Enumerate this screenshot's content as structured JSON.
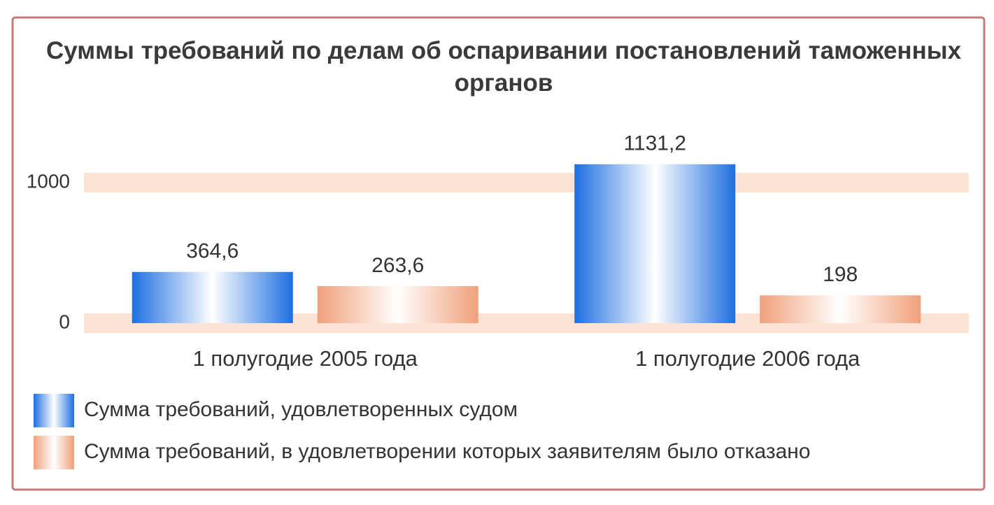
{
  "chart_data": {
    "type": "bar",
    "title": "Суммы требований по делам об оспаривании постановлений таможенных органов",
    "categories": [
      "1 полугодие 2005 года",
      "1 полугодие 2006 года"
    ],
    "series": [
      {
        "name": "Сумма требований, удовлетворенных судом",
        "color": "#1e6fe0",
        "values": [
          364.6,
          1131.2
        ],
        "value_labels": [
          "364,6",
          "1131,2"
        ]
      },
      {
        "name": "Сумма требований, в удовлетворении которых заявителям было отказано",
        "color": "#f0a07a",
        "values": [
          263.6,
          198
        ],
        "value_labels": [
          "263,6",
          "198"
        ]
      }
    ],
    "ylim": [
      0,
      1200
    ],
    "yticks": [
      0,
      1000
    ],
    "grid": true
  }
}
